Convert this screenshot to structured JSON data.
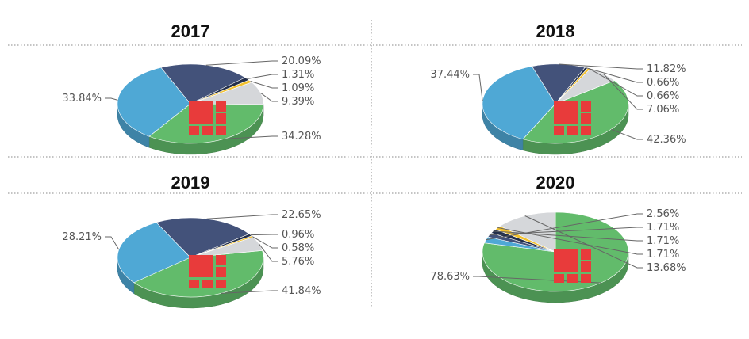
{
  "colors": {
    "green": "#62bb6b",
    "blue": "#4fa8d5",
    "navy": "#43527a",
    "dark": "#232f4b",
    "yellow": "#f2c12e",
    "gray": "#d5d7da",
    "logo": "#e83b3b"
  },
  "chart_data": [
    {
      "type": "pie",
      "title": "2017",
      "slices": [
        {
          "label": "34.28%",
          "value": 34.28,
          "color": "#62bb6b"
        },
        {
          "label": "33.84%",
          "value": 33.84,
          "color": "#4fa8d5"
        },
        {
          "label": "20.09%",
          "value": 20.09,
          "color": "#43527a"
        },
        {
          "label": "1.31%",
          "value": 1.31,
          "color": "#232f4b"
        },
        {
          "label": "1.09%",
          "value": 1.09,
          "color": "#f2c12e"
        },
        {
          "label": "9.39%",
          "value": 9.39,
          "color": "#d5d7da"
        }
      ]
    },
    {
      "type": "pie",
      "title": "2018",
      "slices": [
        {
          "label": "42.36%",
          "value": 42.36,
          "color": "#62bb6b"
        },
        {
          "label": "37.44%",
          "value": 37.44,
          "color": "#4fa8d5"
        },
        {
          "label": "11.82%",
          "value": 11.82,
          "color": "#43527a"
        },
        {
          "label": "0.66%",
          "value": 0.66,
          "color": "#232f4b"
        },
        {
          "label": "0.66%",
          "value": 0.66,
          "color": "#f2c12e"
        },
        {
          "label": "7.06%",
          "value": 7.06,
          "color": "#d5d7da"
        }
      ]
    },
    {
      "type": "pie",
      "title": "2019",
      "slices": [
        {
          "label": "41.84%",
          "value": 41.84,
          "color": "#62bb6b"
        },
        {
          "label": "28.21%",
          "value": 28.21,
          "color": "#4fa8d5"
        },
        {
          "label": "22.65%",
          "value": 22.65,
          "color": "#43527a"
        },
        {
          "label": "0.96%",
          "value": 0.96,
          "color": "#232f4b"
        },
        {
          "label": "0.58%",
          "value": 0.58,
          "color": "#f2c12e"
        },
        {
          "label": "5.76%",
          "value": 5.76,
          "color": "#d5d7da"
        }
      ]
    },
    {
      "type": "pie",
      "title": "2020",
      "slices": [
        {
          "label": "78.63%",
          "value": 78.63,
          "color": "#62bb6b"
        },
        {
          "label": "2.56%",
          "value": 2.56,
          "color": "#4fa8d5"
        },
        {
          "label": "1.71%",
          "value": 1.71,
          "color": "#43527a"
        },
        {
          "label": "1.71%",
          "value": 1.71,
          "color": "#232f4b"
        },
        {
          "label": "1.71%",
          "value": 1.71,
          "color": "#f2c12e"
        },
        {
          "label": "13.68%",
          "value": 13.68,
          "color": "#d5d7da"
        }
      ]
    }
  ]
}
